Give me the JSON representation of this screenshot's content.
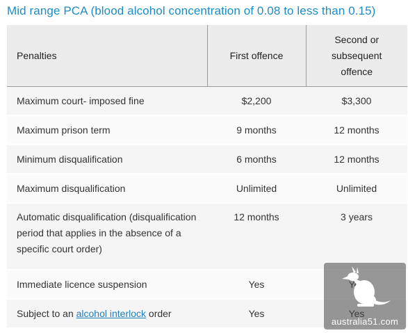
{
  "title": "Mid range PCA (blood alcohol concentration of 0.08 to less than 0.15)",
  "table": {
    "headers": {
      "penalties": "Penalties",
      "first": "First offence",
      "second": "Second or subsequent offence"
    },
    "rows": [
      {
        "label": "Maximum court- imposed fine",
        "first": "$2,200",
        "second": "$3,300"
      },
      {
        "label": "Maximum prison term",
        "first": "9 months",
        "second": "12 months"
      },
      {
        "label": "Minimum disqualification",
        "first": "6 months",
        "second": "12 months"
      },
      {
        "label": "Maximum disqualification",
        "first": "Unlimited",
        "second": "Unlimited"
      },
      {
        "label": "Automatic disqualification (disqualification period that applies in the absence of a specific court order)",
        "first": "12 months",
        "second": "3 years"
      },
      {
        "label": "Immediate licence suspension",
        "first": "Yes",
        "second": "Yes"
      },
      {
        "label_prefix": "Subject to an ",
        "label_link": "alcohol interlock",
        "label_suffix": " order",
        "first": "Yes",
        "second": "Yes"
      }
    ]
  },
  "watermark": {
    "text": "australia51.com",
    "icon": "kangaroo-icon"
  }
}
